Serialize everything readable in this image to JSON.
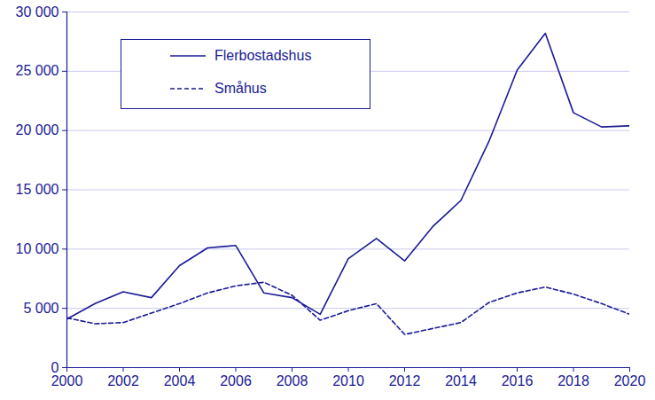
{
  "chart_data": {
    "type": "line",
    "x": [
      2000,
      2001,
      2002,
      2003,
      2004,
      2005,
      2006,
      2007,
      2008,
      2009,
      2010,
      2011,
      2012,
      2013,
      2014,
      2015,
      2016,
      2017,
      2018,
      2019,
      2020
    ],
    "series": [
      {
        "name": "Flerbostadshus",
        "color": "#1a1a96",
        "line_style": "solid",
        "values": [
          4100,
          5400,
          6400,
          5900,
          8600,
          10100,
          10300,
          6300,
          5900,
          4500,
          9200,
          10900,
          9000,
          11900,
          14100,
          19100,
          25100,
          28200,
          21500,
          20300,
          20400
        ]
      },
      {
        "name": "Småhus",
        "color": "#1a1a96",
        "line_style": "dashed",
        "values": [
          4200,
          3700,
          3800,
          4600,
          5400,
          6300,
          6900,
          7200,
          6100,
          4000,
          4800,
          5400,
          2800,
          3300,
          3800,
          5500,
          6300,
          6800,
          6200,
          5400,
          4500
        ]
      }
    ],
    "xlim": [
      2000,
      2020
    ],
    "xticks": [
      2000,
      2002,
      2004,
      2006,
      2008,
      2010,
      2012,
      2014,
      2016,
      2018,
      2020
    ],
    "ylim": [
      0,
      30000
    ],
    "yticks": [
      0,
      {
        "value": 5000,
        "label": "5 000"
      },
      {
        "value": 10000,
        "label": "10 000"
      },
      {
        "value": 15000,
        "label": "15 000"
      },
      {
        "value": 20000,
        "label": "20 000"
      },
      {
        "value": 25000,
        "label": "25 000"
      },
      {
        "value": 30000,
        "label": "30 000"
      }
    ],
    "grid": true,
    "legend": "top-left"
  }
}
